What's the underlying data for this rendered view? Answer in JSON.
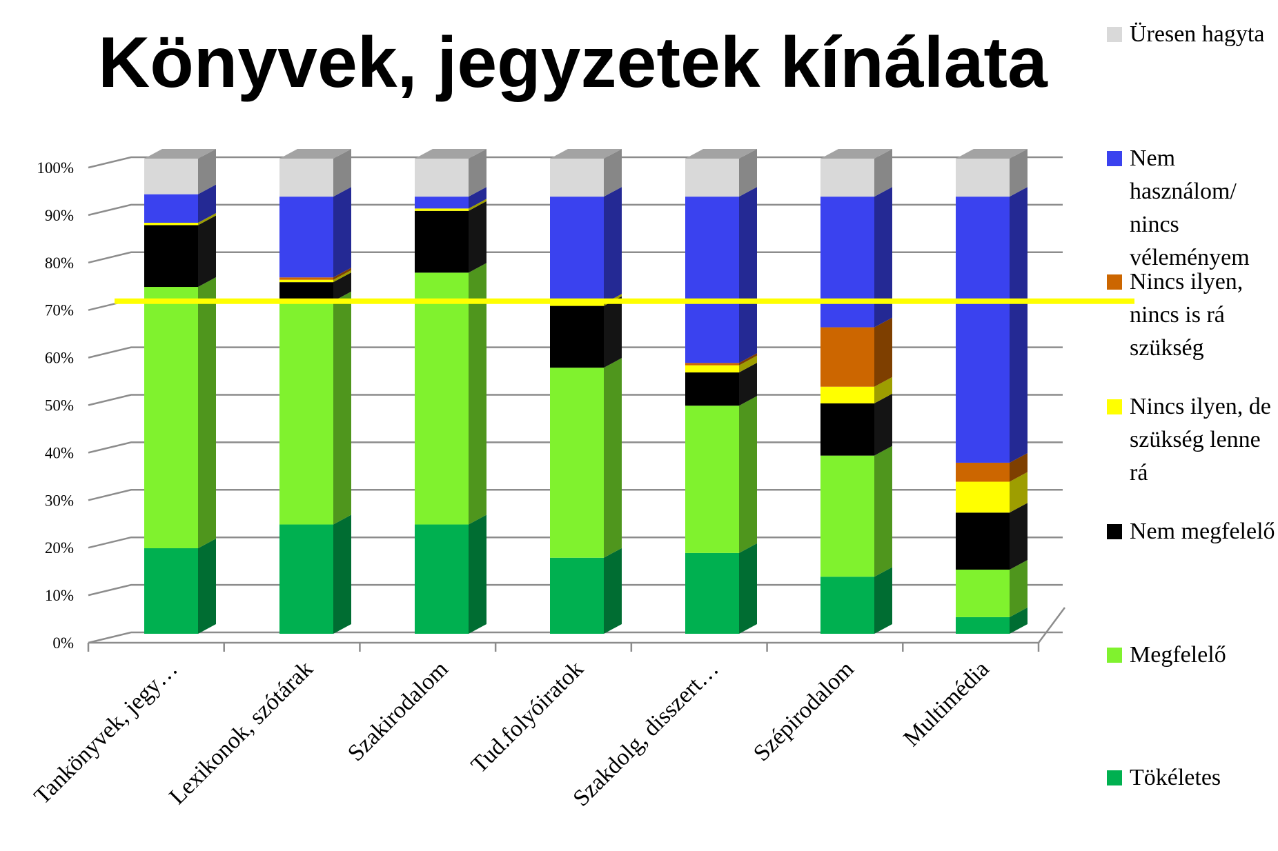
{
  "chart_data": {
    "type": "stacked_bar_3d",
    "title": "Könyvek, jegyzetek kínálata",
    "categories": [
      "Tankönyvek, jegy…",
      "Lexikonok, szótárak",
      "Szakirodalom",
      "Tud.folyóiratok",
      "Szakdolg, disszert…",
      "Szépirodalom",
      "Multimédia"
    ],
    "series": [
      {
        "name": "Tökéletes",
        "color": "#00b050",
        "values": [
          18,
          23,
          23,
          16,
          17,
          12,
          3.5
        ]
      },
      {
        "name": "Megfelelő",
        "color": "#80f22e",
        "values": [
          55,
          47,
          53,
          40,
          31,
          25.5,
          10
        ]
      },
      {
        "name": "Nem megfelelő",
        "color": "#000000",
        "values": [
          13,
          4,
          13,
          13,
          7,
          11,
          12
        ]
      },
      {
        "name": "Nincs ilyen, de szükség lenne rá",
        "color": "#ffff00",
        "values": [
          0.5,
          0.5,
          0.5,
          0.5,
          1.5,
          3.5,
          6.5
        ]
      },
      {
        "name": "Nincs ilyen, nincs is rá szükség",
        "color": "#cc6600",
        "values": [
          0,
          0.5,
          0,
          0,
          0.5,
          12.5,
          4
        ]
      },
      {
        "name": "Nem használom/ nincs véleményem",
        "color": "#3a42ef",
        "values": [
          6,
          17,
          2.5,
          22.5,
          35,
          27.5,
          56
        ]
      },
      {
        "name": "Üresen hagyta",
        "color": "#d9d9d9",
        "values": [
          7.5,
          8,
          8,
          8,
          8,
          8,
          8
        ]
      }
    ],
    "ylim": [
      0,
      100
    ],
    "yticks": [
      {
        "value": 0,
        "label": "0%"
      },
      {
        "value": 10,
        "label": "10%"
      },
      {
        "value": 20,
        "label": "20%"
      },
      {
        "value": 30,
        "label": "30%"
      },
      {
        "value": 40,
        "label": "40%"
      },
      {
        "value": 50,
        "label": "50%"
      },
      {
        "value": 60,
        "label": "60%"
      },
      {
        "value": 70,
        "label": "70%"
      },
      {
        "value": 80,
        "label": "80%"
      },
      {
        "value": 90,
        "label": "90%"
      },
      {
        "value": 100,
        "label": "100%"
      }
    ],
    "grid": true,
    "reference_line": {
      "value": 70,
      "color": "#ffff00"
    },
    "legend": "right"
  }
}
